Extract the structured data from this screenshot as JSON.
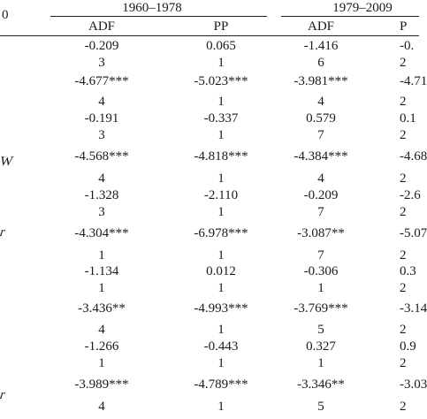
{
  "header": {
    "left_stub": "0",
    "periods": [
      {
        "label": "1960–1978"
      },
      {
        "label": "1979–2009"
      }
    ],
    "columns": [
      "ADF",
      "PP",
      "ADF",
      "P"
    ]
  },
  "stubs": [
    {
      "label": "W"
    },
    {
      "label": "r"
    },
    {
      "label": "r"
    }
  ],
  "rows": [
    [
      "-0.209",
      "0.065",
      "-1.416",
      "-0."
    ],
    [
      "3",
      "1",
      "6",
      "2"
    ],
    [
      "-4.677***",
      "-5.023***",
      "-3.981***",
      "-4.71"
    ],
    [
      "4",
      "1",
      "4",
      "2"
    ],
    [
      "-0.191",
      "-0.337",
      "0.579",
      "0.1"
    ],
    [
      "3",
      "1",
      "7",
      "2"
    ],
    [
      "-4.568***",
      "-4.818***",
      "-4.384***",
      "-4.68"
    ],
    [
      "4",
      "1",
      "4",
      "2"
    ],
    [
      "-1.328",
      "-2.110",
      "-0.209",
      "-2.6"
    ],
    [
      "3",
      "1",
      "7",
      "2"
    ],
    [
      "-4.304***",
      "-6.978***",
      "-3.087**",
      "-5.07"
    ],
    [
      "1",
      "1",
      "7",
      "2"
    ],
    [
      "-1.134",
      "0.012",
      "-0.306",
      "0.3"
    ],
    [
      "1",
      "1",
      "1",
      "2"
    ],
    [
      "-3.436**",
      "-4.993***",
      "-3.769***",
      "-3.14"
    ],
    [
      "4",
      "1",
      "5",
      "2"
    ],
    [
      "-1.266",
      "-0.443",
      "0.327",
      "0.9"
    ],
    [
      "1",
      "1",
      "1",
      "2"
    ],
    [
      "-3.989***",
      "-4.789***",
      "-3.346**",
      "-3.03"
    ],
    [
      "4",
      "1",
      "5",
      "2"
    ]
  ]
}
